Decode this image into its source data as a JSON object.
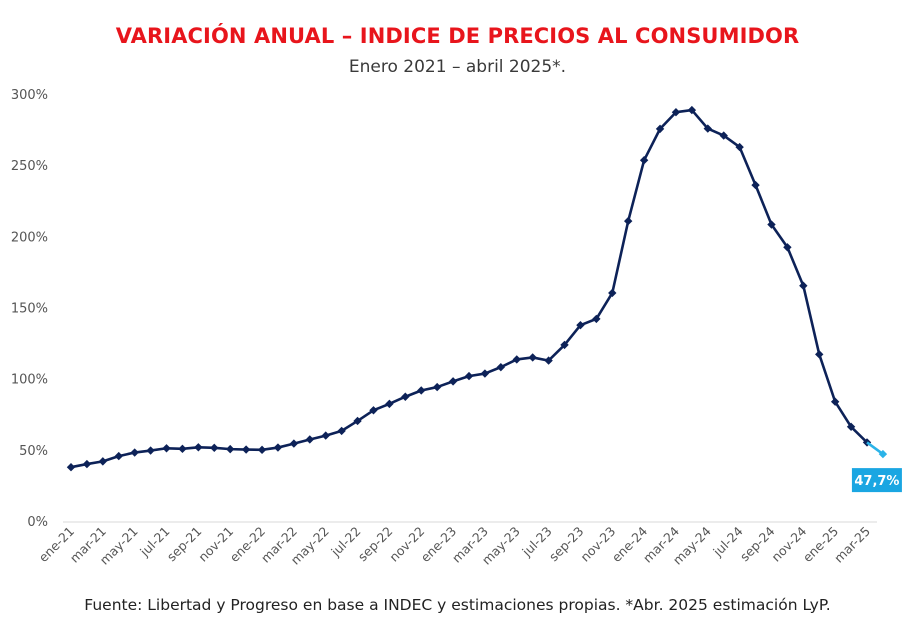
{
  "chart_data": {
    "type": "line",
    "title": "VARIACIÓN ANUAL – INDICE DE PRECIOS AL CONSUMIDOR",
    "subtitle": "Enero 2021 – abril 2025*.",
    "source": "Fuente: Libertad y Progreso en base a INDEC y estimaciones propias. *Abr. 2025 estimación LyP.",
    "y_ticks": [
      "0%",
      "50%",
      "100%",
      "150%",
      "200%",
      "250%",
      "300%"
    ],
    "ylim": [
      0,
      300
    ],
    "x_tick_labels": [
      "ene-21",
      "mar-21",
      "may-21",
      "jul-21",
      "sep-21",
      "nov-21",
      "ene-22",
      "mar-22",
      "may-22",
      "jul-22",
      "sep-22",
      "nov-22",
      "ene-23",
      "mar-23",
      "may-23",
      "jul-23",
      "sep-23",
      "nov-23",
      "ene-24",
      "mar-24",
      "may-24",
      "jul-24",
      "sep-24",
      "nov-24",
      "ene-25",
      "mar-25"
    ],
    "series": [
      {
        "color": "#0d2258",
        "values": [
          38.5,
          40.7,
          42.6,
          46.3,
          48.8,
          50.2,
          51.8,
          51.4,
          52.5,
          52.1,
          51.2,
          50.9,
          50.7,
          52.3,
          55.1,
          58.0,
          60.7,
          64.0,
          71.0,
          78.5,
          83.0,
          88.0,
          92.4,
          94.8,
          98.8,
          102.5,
          104.3,
          108.8,
          114.2,
          115.6,
          113.4,
          124.4,
          138.3,
          142.7,
          160.9,
          211.4,
          254.2,
          276.2,
          287.9,
          289.4,
          276.4,
          271.5,
          263.4,
          236.7,
          209.0,
          193.0,
          166.0,
          117.8,
          84.5,
          66.9,
          55.9
        ]
      },
      {
        "color": "#2bb3e8",
        "values": [
          55.9,
          47.7
        ],
        "start_index": 50,
        "data_label": "47,7%"
      }
    ]
  }
}
